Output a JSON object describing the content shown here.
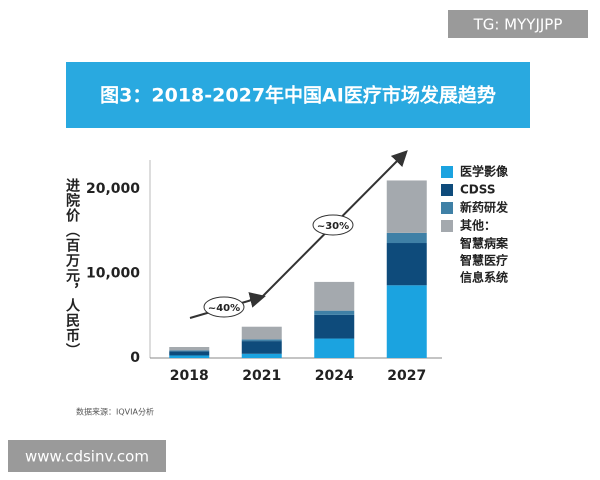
{
  "watermark_top": "TG: MYYJJPP",
  "watermark_bottom": "www.cdsinv.com",
  "chart_data": {
    "type": "stacked_bar",
    "title": "图3：2018-2027年中国AI医疗市场发展趋势",
    "y_label": "进院价（百万元，人民币）",
    "source": "数据来源：IQVIA分析",
    "categories": [
      "2018",
      "2021",
      "2024",
      "2027"
    ],
    "series": [
      {
        "name": "医学影像",
        "color": "#1ba3e0",
        "values": [
          300,
          500,
          2300,
          8600
        ]
      },
      {
        "name": "CDSS",
        "color": "#0e4b7b",
        "values": [
          500,
          1500,
          2800,
          5000
        ]
      },
      {
        "name": "新药研发",
        "color": "#3f80a6",
        "values": [
          100,
          200,
          500,
          1200
        ]
      },
      {
        "name": "其他：",
        "legend_detail": [
          "智慧病案",
          "智慧医疗",
          "信息系统"
        ],
        "color": "#a4a9ae",
        "values": [
          400,
          1500,
          3400,
          6200
        ]
      }
    ],
    "annotations": [
      "~40%",
      "~30%"
    ],
    "ylim": [
      0,
      22000
    ],
    "yticks": [
      0,
      {
        "value": 10000,
        "label": "10,000"
      },
      {
        "value": 20000,
        "label": "20,000"
      }
    ]
  }
}
